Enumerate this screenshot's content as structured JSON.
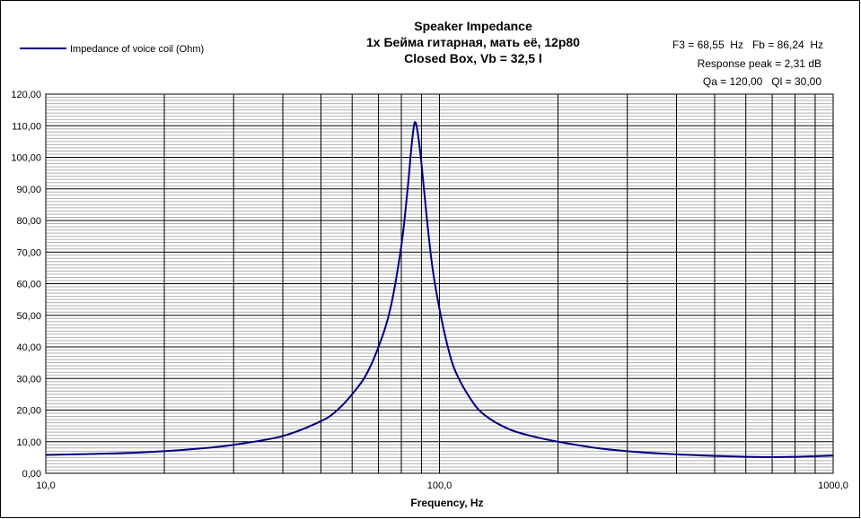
{
  "chart_data": {
    "type": "line",
    "title": [
      "Speaker Impedance",
      "1x Бейма гитарная, мать её, 12p80",
      "Closed Box, Vb = 32,5 l"
    ],
    "annotations": [
      "F3 = 68,55  Hz   Fb = 86,24  Hz",
      "Response peak = 2,31  dB",
      "Qa = 120,00   Ql = 30,00"
    ],
    "xlabel": "Frequency, Hz",
    "ylabel": "",
    "xscale": "log",
    "xlim": [
      10,
      1000
    ],
    "ylim": [
      0,
      120
    ],
    "xticks": [
      {
        "v": 10,
        "label": "10,0"
      },
      {
        "v": 100,
        "label": "100,0"
      },
      {
        "v": 1000,
        "label": "1000,0"
      }
    ],
    "yticks": [
      {
        "v": 0,
        "label": "0,00"
      },
      {
        "v": 10,
        "label": "10,00"
      },
      {
        "v": 20,
        "label": "20,00"
      },
      {
        "v": 30,
        "label": "30,00"
      },
      {
        "v": 40,
        "label": "40,00"
      },
      {
        "v": 50,
        "label": "50,00"
      },
      {
        "v": 60,
        "label": "60,00"
      },
      {
        "v": 70,
        "label": "70,00"
      },
      {
        "v": 80,
        "label": "80,00"
      },
      {
        "v": 90,
        "label": "90,00"
      },
      {
        "v": 100,
        "label": "100,00"
      },
      {
        "v": 110,
        "label": "110,00"
      },
      {
        "v": 120,
        "label": "120,00"
      }
    ],
    "grid": true,
    "legend_position": "top-left",
    "series": [
      {
        "name": "Impedance of voice coil (Ohm)",
        "color": "#000080",
        "x": [
          10,
          15,
          20,
          25,
          30,
          40,
          50,
          55,
          60,
          65,
          70,
          75,
          80,
          83,
          85,
          86.5,
          88,
          90,
          93,
          96,
          100,
          105,
          110,
          120,
          130,
          150,
          175,
          200,
          250,
          300,
          400,
          500,
          600,
          700,
          800,
          900,
          1000
        ],
        "y": [
          5.8,
          6.3,
          7.0,
          7.9,
          9.0,
          11.8,
          16.5,
          20,
          25,
          31,
          40,
          52,
          72,
          90,
          104,
          111,
          108,
          98,
          80,
          65,
          52,
          40,
          32,
          23.5,
          18.5,
          14,
          11.5,
          10,
          8,
          7,
          6,
          5.5,
          5.2,
          5.1,
          5.2,
          5.4,
          5.6
        ]
      }
    ]
  }
}
